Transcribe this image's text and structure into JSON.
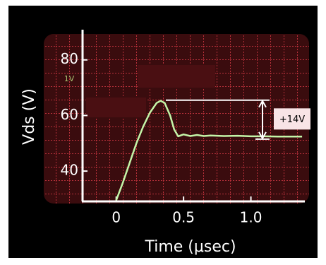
{
  "chart_data": {
    "type": "line",
    "ylabel": "Vds (V)",
    "xlabel": "Time (μsec)",
    "x": [
      0,
      0.05,
      0.1,
      0.15,
      0.2,
      0.25,
      0.3,
      0.33,
      0.36,
      0.4,
      0.43,
      0.46,
      0.5,
      0.55,
      0.6,
      0.65,
      0.7,
      0.8,
      0.9,
      1.0,
      1.1,
      1.2,
      1.3,
      1.38
    ],
    "values": [
      29.5,
      36,
      43,
      50,
      56,
      61,
      64.5,
      65.3,
      64.5,
      60,
      55,
      52.5,
      53.2,
      52.6,
      53,
      52.6,
      52.8,
      52.6,
      52.7,
      52.5,
      52.5,
      52.4,
      52.4,
      52.4
    ],
    "color": "#c4f5a8",
    "xlim": [
      -0.25,
      1.39
    ],
    "ylim": [
      29.1,
      90.1
    ],
    "xticks": [
      0,
      0.5,
      {
        "value": 1,
        "label": "1.0"
      }
    ],
    "yticks": [
      40,
      60,
      80
    ],
    "scope_label": "1V",
    "annotation": {
      "label": "+14V",
      "top": 65.5,
      "bottom": 51.5
    }
  }
}
